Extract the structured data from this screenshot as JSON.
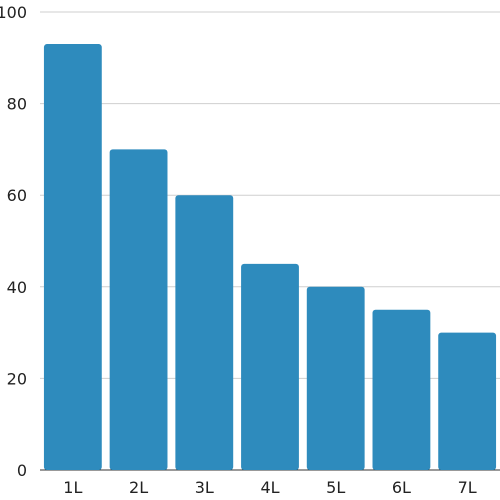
{
  "chart_data": {
    "type": "bar",
    "title": "",
    "xlabel": "",
    "ylabel": "",
    "categories": [
      "1L",
      "2L",
      "3L",
      "4L",
      "5L",
      "6L",
      "7L"
    ],
    "values": [
      93,
      70,
      60,
      45,
      40,
      35,
      30
    ],
    "ylim": [
      0,
      100
    ],
    "yticks": [
      0,
      20,
      40,
      60,
      80,
      100
    ],
    "grid": true,
    "bar_color": "#2e8bbd"
  }
}
